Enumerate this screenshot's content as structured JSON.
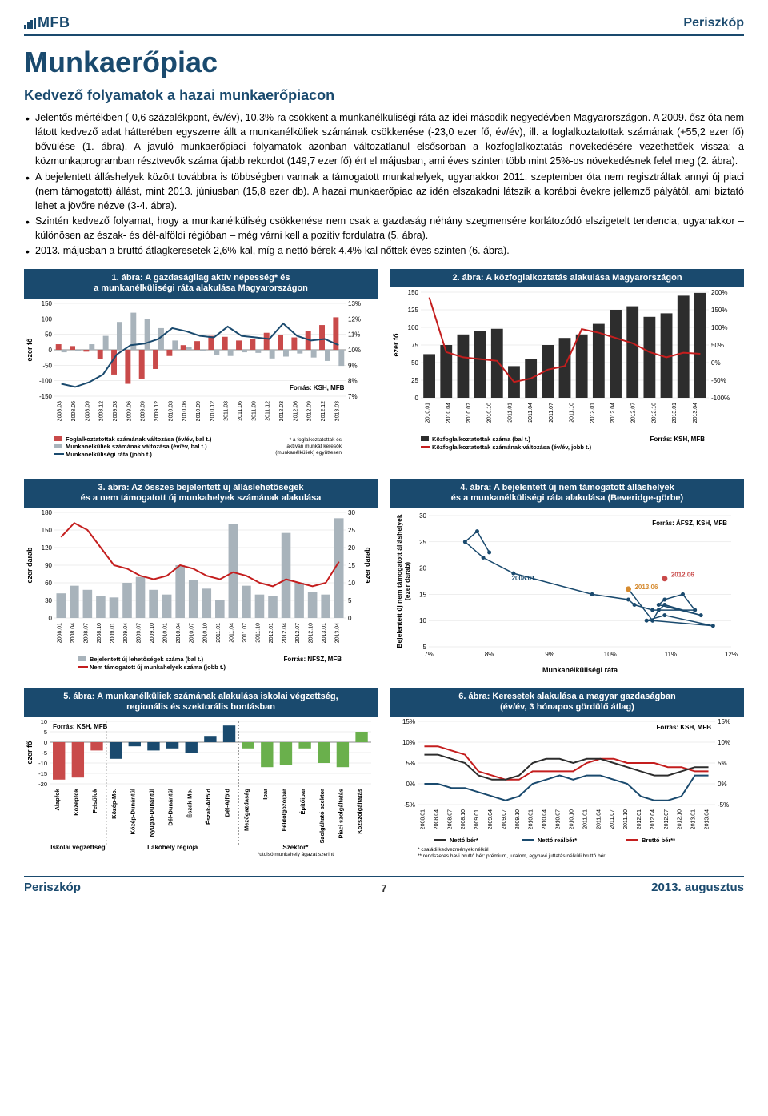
{
  "header": {
    "logo": "MFB",
    "doc_name": "Periszkóp"
  },
  "title": "Munkaerőpiac",
  "subtitle": "Kedvező folyamatok a hazai munkaerőpiacon",
  "bullets": [
    "Jelentős mértékben (-0,6 százalékpont, év/év), 10,3%-ra csökkent a munkanélküliségi ráta az idei második negyedévben Magyarországon. A 2009. ősz óta nem látott kedvező adat hátterében egyszerre állt a munkanélküliek számának csökkenése (-23,0 ezer fő, év/év), ill. a foglalkoztatottak számának (+55,2 ezer fő) bővülése (1. ábra). A javuló munkaerőpiaci folyamatok azonban változatlanul elsősorban a közfoglalkoztatás növekedésére vezethetőek vissza: a közmunkaprogramban résztvevők száma újabb rekordot (149,7 ezer fő) ért el májusban, ami éves szinten több mint 25%-os növekedésnek felel meg (2. ábra).",
    "A bejelentett álláshelyek között továbbra is többségben vannak a támogatott munkahelyek, ugyanakkor 2011. szeptember óta nem regisztráltak annyi új piaci (nem támogatott) állást, mint 2013. júniusban (15,8 ezer db). A hazai munkaerőpiac az idén elszakadni látszik a korábbi évekre jellemző pályától, ami biztató lehet a jövőre nézve (3-4. ábra).",
    "Szintén kedvező folyamat, hogy a munkanélküliség csökkenése nem csak a gazdaság néhány szegmensére korlátozódó elszigetelt tendencia, ugyanakkor – különösen az észak- és dél-alföldi régióban – még várni kell a pozitív fordulatra (5. ábra).",
    "2013. májusban a bruttó átlagkeresetek 2,6%-kal, míg a nettó bérek 4,4%-kal nőttek éves szinten (6. ábra)."
  ],
  "chart1": {
    "title": "1. ábra: A gazdaságilag aktív népesség* és\na munkanélküliségi ráta alakulása Magyarországon",
    "y1_label": "ezer fő",
    "y1_ticks": [
      -150,
      -100,
      -50,
      0,
      50,
      100,
      150
    ],
    "y2_ticks": [
      "7%",
      "8%",
      "9%",
      "10%",
      "11%",
      "12%",
      "13%"
    ],
    "x_ticks": [
      "2008.03",
      "2008.06",
      "2008.09",
      "2008.12",
      "2009.03",
      "2009.06",
      "2009.09",
      "2009.12",
      "2010.03",
      "2010.06",
      "2010.09",
      "2010.12",
      "2011.03",
      "2011.06",
      "2011.09",
      "2011.12",
      "2012.03",
      "2012.06",
      "2012.09",
      "2012.12",
      "2013.03"
    ],
    "legend": [
      "Foglalkoztatottak számának változása (év/év, bal t.)",
      "Munkanélküliek számának változása (év/év, bal t.)",
      "Munkanélküliségi ráta (jobb t.)"
    ],
    "footnote": "* a foglalkoztatottak és aktívan munkát keresők (munkanélküliek) együttesen",
    "source": "Forrás: KSH, MFB",
    "colors": {
      "employed": "#c94a4a",
      "unemployed": "#a8b3bb",
      "rate": "#1a4a6e"
    },
    "employed_bars": [
      18,
      12,
      -6,
      -30,
      -80,
      -110,
      -95,
      -62,
      -20,
      15,
      28,
      45,
      42,
      30,
      35,
      55,
      48,
      40,
      60,
      80,
      105
    ],
    "unemployed_bars": [
      -8,
      -4,
      18,
      45,
      90,
      120,
      100,
      70,
      30,
      8,
      -4,
      -18,
      -20,
      -8,
      -10,
      -28,
      -22,
      -12,
      -25,
      -36,
      -52
    ],
    "rate_line": [
      7.8,
      7.6,
      7.9,
      8.4,
      9.7,
      10.3,
      10.4,
      10.7,
      11.4,
      11.2,
      10.9,
      10.8,
      11.5,
      10.9,
      10.8,
      10.7,
      11.7,
      10.9,
      10.6,
      10.7,
      10.3
    ]
  },
  "chart2": {
    "title": "2. ábra: A közfoglalkoztatás alakulása Magyarországon",
    "y1_label": "ezer fő",
    "y1_ticks": [
      0,
      25,
      50,
      75,
      100,
      125,
      150
    ],
    "y2_ticks": [
      "-100%",
      "-50%",
      "0%",
      "50%",
      "100%",
      "150%",
      "200%"
    ],
    "x_ticks": [
      "2010.01",
      "2010.04",
      "2010.07",
      "2010.10",
      "2011.01",
      "2011.04",
      "2011.07",
      "2011.10",
      "2012.01",
      "2012.04",
      "2012.07",
      "2012.10",
      "2013.01",
      "2013.04"
    ],
    "legend": [
      "Közfoglalkoztatottak száma (bal t.)",
      "Közfoglalkoztatottak számának változása (év/év, jobb t.)"
    ],
    "source": "Forrás: KSH, MFB",
    "colors": {
      "bars": "#2d2d2d",
      "line": "#c41e1e"
    },
    "bars": [
      62,
      75,
      90,
      95,
      98,
      45,
      55,
      75,
      85,
      90,
      105,
      125,
      130,
      115,
      120,
      145,
      149
    ],
    "line": [
      185,
      30,
      15,
      10,
      5,
      -55,
      -45,
      -20,
      -10,
      95,
      85,
      70,
      55,
      30,
      15,
      28,
      25
    ]
  },
  "chart3": {
    "title": "3. ábra: Az összes bejelentett új álláslehetőségek\nés a nem támogatott új munkahelyek számának alakulása",
    "y1_label": "ezer darab",
    "y2_label": "ezer darab",
    "y1_ticks": [
      0,
      30,
      60,
      90,
      120,
      150,
      180
    ],
    "y2_ticks": [
      0,
      5,
      10,
      15,
      20,
      25,
      30
    ],
    "x_ticks": [
      "2008.01",
      "2008.04",
      "2008.07",
      "2008.10",
      "2009.01",
      "2009.04",
      "2009.07",
      "2009.10",
      "2010.01",
      "2010.04",
      "2010.07",
      "2010.10",
      "2011.01",
      "2011.04",
      "2011.07",
      "2011.10",
      "2012.01",
      "2012.04",
      "2012.07",
      "2012.10",
      "2013.01",
      "2013.04"
    ],
    "legend": [
      "Bejelentett új lehetőségek száma (bal t.)",
      "Nem támogatott új munkahelyek száma (jobb t.)"
    ],
    "source": "Forrás: NFSZ, MFB",
    "colors": {
      "bars": "#a8b3bb",
      "line": "#c41e1e"
    },
    "bars": [
      42,
      55,
      48,
      38,
      35,
      60,
      70,
      48,
      40,
      90,
      65,
      50,
      30,
      160,
      55,
      40,
      38,
      145,
      60,
      45,
      40,
      170
    ],
    "line": [
      23,
      27,
      25,
      20,
      15,
      14,
      12,
      11,
      12,
      15,
      14,
      12,
      11,
      13,
      12,
      10,
      9,
      11,
      10,
      9,
      10,
      16
    ]
  },
  "chart4": {
    "title": "4. ábra: A bejelentett új nem támogatott álláshelyek\nés a munkanélküliségi ráta alakulása (Beveridge-görbe)",
    "y_label": "Bejelentett új nem támogatott álláshelyek\n(ezer darab)",
    "x_label": "Munkanélküliségi ráta",
    "y_ticks": [
      5,
      10,
      15,
      20,
      25,
      30
    ],
    "x_ticks": [
      "7%",
      "8%",
      "9%",
      "10%",
      "11%",
      "12%"
    ],
    "annotations": [
      "2008.01",
      "2012.06",
      "2013.06"
    ],
    "source": "Forrás: ÁFSZ, KSH, MFB",
    "colors": {
      "path": "#1a4a6e",
      "hl2012": "#c94a4a",
      "hl2013": "#d68a2e"
    },
    "path_points": [
      [
        8.0,
        23
      ],
      [
        7.8,
        27
      ],
      [
        7.6,
        25
      ],
      [
        7.9,
        22
      ],
      [
        8.4,
        19
      ],
      [
        9.7,
        15
      ],
      [
        10.3,
        14
      ],
      [
        10.4,
        13
      ],
      [
        10.7,
        12
      ],
      [
        11.4,
        12
      ],
      [
        11.2,
        15
      ],
      [
        10.9,
        14
      ],
      [
        10.8,
        13
      ],
      [
        11.5,
        11
      ],
      [
        10.9,
        13
      ],
      [
        10.8,
        12
      ],
      [
        10.7,
        10
      ],
      [
        11.7,
        9
      ],
      [
        10.9,
        11
      ],
      [
        10.6,
        10
      ],
      [
        10.7,
        10
      ],
      [
        10.3,
        16
      ]
    ]
  },
  "chart5": {
    "title": "5. ábra: A munkanélküliek számának alakulása iskolai végzettség,\nregionális és szektorális bontásban",
    "y_label": "ezer fő",
    "y_ticks": [
      -20,
      -15,
      -10,
      -5,
      0,
      5,
      10
    ],
    "source": "Forrás: KSH, MFB",
    "groups": [
      "Iskolai végzettség",
      "Lakóhely régiója",
      "Szektor*"
    ],
    "group_footnote": "*utolsó munkahely ágazat szerint",
    "categories": [
      "Alapfok",
      "Középfok",
      "Felsőfok",
      "Közép-Mo.",
      "Közép-Dunántúl",
      "Nyugat-Dunántúl",
      "Dél-Dunántúl",
      "Észak-Mo.",
      "Észak-Alföld",
      "Dél-Alföld",
      "Mezőgazdaság",
      "Ipar",
      "Feldolgozóipar",
      "Építőipar",
      "Szolgáltató szektor",
      "Piaci szolgáltatás",
      "Közszolgáltatás"
    ],
    "colors": [
      "#c94a4a",
      "#c94a4a",
      "#c94a4a",
      "#1a4a6e",
      "#1a4a6e",
      "#1a4a6e",
      "#1a4a6e",
      "#1a4a6e",
      "#1a4a6e",
      "#1a4a6e",
      "#6ab04c",
      "#6ab04c",
      "#6ab04c",
      "#6ab04c",
      "#6ab04c",
      "#6ab04c",
      "#6ab04c"
    ],
    "values": [
      -18,
      -17,
      -4,
      -8,
      -2,
      -4,
      -3,
      -5,
      3,
      8,
      -3,
      -12,
      -11,
      -3,
      -10,
      -12,
      5
    ]
  },
  "chart6": {
    "title": "6. ábra: Keresetek alakulása a magyar gazdaságban\n(év/év, 3 hónapos gördülő átlag)",
    "y_ticks": [
      "-5%",
      "0%",
      "5%",
      "10%",
      "15%"
    ],
    "x_ticks": [
      "2008.01",
      "2008.04",
      "2008.07",
      "2008.10",
      "2009.01",
      "2009.04",
      "2009.07",
      "2009.10",
      "2010.01",
      "2010.04",
      "2010.07",
      "2010.10",
      "2011.01",
      "2011.04",
      "2011.07",
      "2011.10",
      "2012.01",
      "2012.04",
      "2012.07",
      "2012.10",
      "2013.01",
      "2013.04"
    ],
    "legend": [
      "Nettó bér*",
      "Nettó reálbér*",
      "Bruttó bér**"
    ],
    "footnote1": "* családi kedvezmények nélkül",
    "footnote2": "** rendszeres havi bruttó bér: prémium, jutalom, egyhavi juttatás nélküli bruttó bér",
    "source": "Forrás: KSH, MFB",
    "colors": {
      "netto": "#2d2d2d",
      "real": "#1a4a6e",
      "brutto": "#c41e1e"
    },
    "netto": [
      7,
      7,
      6,
      5,
      2,
      1,
      1,
      2,
      5,
      6,
      6,
      5,
      6,
      6,
      5,
      4,
      3,
      2,
      2,
      3,
      4,
      4
    ],
    "real": [
      0,
      0,
      -1,
      -1,
      -2,
      -3,
      -4,
      -3,
      0,
      1,
      2,
      1,
      2,
      2,
      1,
      0,
      -3,
      -4,
      -4,
      -3,
      2,
      2
    ],
    "brutto": [
      9,
      9,
      8,
      7,
      3,
      2,
      1,
      1,
      3,
      3,
      3,
      3,
      5,
      6,
      6,
      5,
      5,
      5,
      4,
      4,
      3,
      3
    ]
  },
  "footer": {
    "left": "Periszkóp",
    "page": "7",
    "right": "2013. augusztus"
  }
}
